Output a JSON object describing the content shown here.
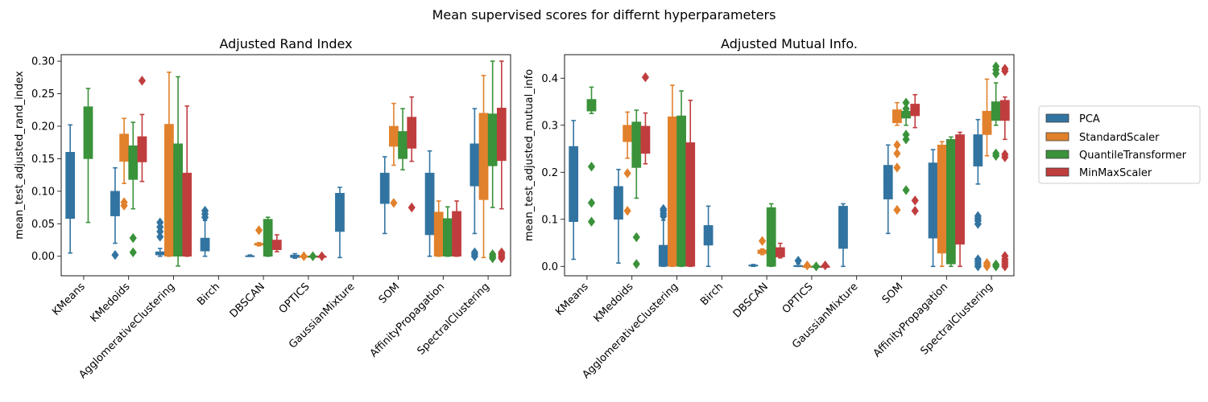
{
  "figure_title": "Mean supervised scores for differnt hyperparameters",
  "chart_data": [
    {
      "type": "box",
      "title": "Adjusted Rand Index",
      "xlabel": "",
      "ylabel": "mean_test_adjusted_rand_index",
      "ylim": [
        -0.03,
        0.31
      ],
      "yticks": [
        "0.00",
        "0.05",
        "0.10",
        "0.15",
        "0.20",
        "0.25",
        "0.30"
      ],
      "ytick_values": [
        0,
        0.05,
        0.1,
        0.15,
        0.2,
        0.25,
        0.3
      ],
      "categories": [
        "KMeans",
        "KMedoids",
        "AgglomerativeClustering",
        "Birch",
        "DBSCAN",
        "OPTICS",
        "GaussianMixture",
        "SOM",
        "AffinityPropagation",
        "SpectralClustering"
      ],
      "series": [
        {
          "name": "PCA",
          "boxes": [
            {
              "low": 0.005,
              "q1": 0.058,
              "med": 0.105,
              "q3": 0.16,
              "high": 0.202,
              "fliers": []
            },
            {
              "low": 0.02,
              "q1": 0.062,
              "med": 0.072,
              "q3": 0.1,
              "high": 0.136,
              "fliers": [
                0.002
              ]
            },
            {
              "low": 0.0,
              "q1": 0.002,
              "med": 0.004,
              "q3": 0.007,
              "high": 0.012,
              "fliers": [
                0.03,
                0.038,
                0.045,
                0.052
              ]
            },
            {
              "low": 0.0,
              "q1": 0.008,
              "med": 0.015,
              "q3": 0.028,
              "high": 0.055,
              "fliers": [
                0.06,
                0.065,
                0.07
              ]
            },
            {
              "low": 0.0,
              "q1": 0.0,
              "med": 0.0,
              "q3": 0.001,
              "high": 0.002,
              "fliers": []
            },
            {
              "low": -0.003,
              "q1": -0.002,
              "med": 0.0,
              "q3": 0.002,
              "high": 0.004,
              "fliers": []
            },
            {
              "low": -0.002,
              "q1": 0.038,
              "med": 0.05,
              "q3": 0.097,
              "high": 0.106,
              "fliers": []
            },
            {
              "low": 0.035,
              "q1": 0.081,
              "med": 0.103,
              "q3": 0.128,
              "high": 0.153,
              "fliers": []
            },
            {
              "low": 0.0,
              "q1": 0.033,
              "med": 0.058,
              "q3": 0.128,
              "high": 0.162,
              "fliers": []
            },
            {
              "low": 0.035,
              "q1": 0.108,
              "med": 0.141,
              "q3": 0.173,
              "high": 0.227,
              "fliers": [
                0.0,
                0.003,
                0.006
              ]
            }
          ]
        },
        {
          "name": "StandardScaler",
          "boxes": [
            null,
            {
              "low": 0.112,
              "q1": 0.146,
              "med": 0.168,
              "q3": 0.188,
              "high": 0.212,
              "fliers": [
                0.078,
                0.083
              ]
            },
            {
              "low": 0.0,
              "q1": 0.0,
              "med": 0.07,
              "q3": 0.203,
              "high": 0.283,
              "fliers": []
            },
            null,
            {
              "low": 0.016,
              "q1": 0.017,
              "med": 0.018,
              "q3": 0.02,
              "high": 0.021,
              "fliers": [
                0.04
              ]
            },
            {
              "low": 0.0,
              "q1": 0.0,
              "med": 0.0,
              "q3": 0.0,
              "high": 0.0,
              "fliers": [
                0.0
              ]
            },
            null,
            {
              "low": 0.14,
              "q1": 0.169,
              "med": 0.188,
              "q3": 0.2,
              "high": 0.235,
              "fliers": [
                0.082
              ]
            },
            {
              "low": 0.0,
              "q1": 0.0,
              "med": 0.02,
              "q3": 0.068,
              "high": 0.085,
              "fliers": []
            },
            {
              "low": -0.002,
              "q1": 0.087,
              "med": 0.17,
              "q3": 0.22,
              "high": 0.278,
              "fliers": []
            }
          ]
        },
        {
          "name": "QuantileTransformer",
          "boxes": [
            {
              "low": 0.052,
              "q1": 0.15,
              "med": 0.2,
              "q3": 0.23,
              "high": 0.258,
              "fliers": []
            },
            {
              "low": 0.073,
              "q1": 0.118,
              "med": 0.145,
              "q3": 0.17,
              "high": 0.206,
              "fliers": [
                0.006,
                0.028
              ]
            },
            {
              "low": -0.015,
              "q1": 0.0,
              "med": 0.075,
              "q3": 0.173,
              "high": 0.276,
              "fliers": []
            },
            null,
            {
              "low": 0.0,
              "q1": 0.0,
              "med": 0.02,
              "q3": 0.057,
              "high": 0.06,
              "fliers": []
            },
            {
              "low": 0.0,
              "q1": 0.0,
              "med": 0.0,
              "q3": 0.0,
              "high": 0.0,
              "fliers": [
                0.0
              ]
            },
            null,
            {
              "low": 0.133,
              "q1": 0.15,
              "med": 0.172,
              "q3": 0.192,
              "high": 0.227,
              "fliers": []
            },
            {
              "low": 0.0,
              "q1": 0.0,
              "med": 0.02,
              "q3": 0.058,
              "high": 0.076,
              "fliers": []
            },
            {
              "low": 0.075,
              "q1": 0.139,
              "med": 0.178,
              "q3": 0.219,
              "high": 0.3,
              "fliers": [
                -0.003,
                0.0,
                0.003
              ]
            }
          ]
        },
        {
          "name": "MinMaxScaler",
          "boxes": [
            null,
            {
              "low": 0.115,
              "q1": 0.145,
              "med": 0.168,
              "q3": 0.184,
              "high": 0.218,
              "fliers": [
                0.27
              ]
            },
            {
              "low": 0.0,
              "q1": 0.0,
              "med": 0.055,
              "q3": 0.128,
              "high": 0.231,
              "fliers": []
            },
            null,
            {
              "low": 0.007,
              "q1": 0.01,
              "med": 0.018,
              "q3": 0.025,
              "high": 0.033,
              "fliers": []
            },
            {
              "low": 0.0,
              "q1": 0.0,
              "med": 0.0,
              "q3": 0.0,
              "high": 0.0,
              "fliers": [
                0.0
              ]
            },
            null,
            {
              "low": 0.146,
              "q1": 0.166,
              "med": 0.19,
              "q3": 0.214,
              "high": 0.245,
              "fliers": [
                0.075
              ]
            },
            {
              "low": 0.0,
              "q1": 0.0,
              "med": 0.03,
              "q3": 0.069,
              "high": 0.085,
              "fliers": []
            },
            {
              "low": 0.073,
              "q1": 0.147,
              "med": 0.185,
              "q3": 0.228,
              "high": 0.3,
              "fliers": [
                -0.003,
                0.0,
                0.003,
                0.006
              ]
            }
          ]
        }
      ]
    },
    {
      "type": "box",
      "title": "Adjusted Mutual Info.",
      "xlabel": "",
      "ylabel": "mean_test_adjusted_mutual_info",
      "ylim": [
        -0.02,
        0.45
      ],
      "yticks": [
        "0.0",
        "0.1",
        "0.2",
        "0.3",
        "0.4"
      ],
      "ytick_values": [
        0,
        0.1,
        0.2,
        0.3,
        0.4
      ],
      "categories": [
        "KMeans",
        "KMedoids",
        "AgglomerativeClustering",
        "Birch",
        "DBSCAN",
        "OPTICS",
        "GaussianMixture",
        "SOM",
        "AffinityPropagation",
        "SpectralClustering"
      ],
      "series": [
        {
          "name": "PCA",
          "boxes": [
            {
              "low": 0.015,
              "q1": 0.095,
              "med": 0.2,
              "q3": 0.255,
              "high": 0.31,
              "fliers": []
            },
            {
              "low": 0.007,
              "q1": 0.1,
              "med": 0.14,
              "q3": 0.17,
              "high": 0.206,
              "fliers": []
            },
            {
              "low": 0.0,
              "q1": 0.0,
              "med": 0.01,
              "q3": 0.045,
              "high": 0.098,
              "fliers": [
                0.107,
                0.112,
                0.118,
                0.122
              ]
            },
            {
              "low": 0.0,
              "q1": 0.045,
              "med": 0.07,
              "q3": 0.087,
              "high": 0.128,
              "fliers": []
            },
            {
              "low": 0.0,
              "q1": 0.001,
              "med": 0.002,
              "q3": 0.003,
              "high": 0.004,
              "fliers": []
            },
            {
              "low": 0.0,
              "q1": 0.0,
              "med": 0.0,
              "q3": 0.002,
              "high": 0.005,
              "fliers": [
                0.012
              ]
            },
            {
              "low": 0.0,
              "q1": 0.038,
              "med": 0.11,
              "q3": 0.128,
              "high": 0.133,
              "fliers": []
            },
            {
              "low": 0.07,
              "q1": 0.143,
              "med": 0.19,
              "q3": 0.215,
              "high": 0.258,
              "fliers": []
            },
            {
              "low": 0.0,
              "q1": 0.06,
              "med": 0.115,
              "q3": 0.22,
              "high": 0.248,
              "fliers": []
            },
            {
              "low": 0.175,
              "q1": 0.213,
              "med": 0.26,
              "q3": 0.28,
              "high": 0.312,
              "fliers": [
                0.0,
                0.005,
                0.01,
                0.015,
                0.09,
                0.097,
                0.102,
                0.107
              ]
            }
          ]
        },
        {
          "name": "StandardScaler",
          "boxes": [
            null,
            {
              "low": 0.23,
              "q1": 0.265,
              "med": 0.28,
              "q3": 0.3,
              "high": 0.328,
              "fliers": [
                0.118,
                0.198
              ]
            },
            {
              "low": 0.0,
              "q1": 0.0,
              "med": 0.14,
              "q3": 0.318,
              "high": 0.385,
              "fliers": []
            },
            null,
            {
              "low": 0.025,
              "q1": 0.027,
              "med": 0.03,
              "q3": 0.035,
              "high": 0.037,
              "fliers": [
                0.054
              ]
            },
            {
              "low": 0.0,
              "q1": 0.0,
              "med": 0.0,
              "q3": 0.0,
              "high": 0.0,
              "fliers": [
                0.002
              ]
            },
            null,
            {
              "low": 0.3,
              "q1": 0.305,
              "med": 0.31,
              "q3": 0.333,
              "high": 0.348,
              "fliers": [
                0.12,
                0.21,
                0.24,
                0.258
              ]
            },
            {
              "low": 0.0,
              "q1": 0.028,
              "med": 0.12,
              "q3": 0.258,
              "high": 0.265,
              "fliers": []
            },
            {
              "low": 0.235,
              "q1": 0.28,
              "med": 0.3,
              "q3": 0.33,
              "high": 0.398,
              "fliers": [
                0.0,
                0.003,
                0.007
              ]
            }
          ]
        },
        {
          "name": "QuantileTransformer",
          "boxes": [
            {
              "low": 0.325,
              "q1": 0.33,
              "med": 0.34,
              "q3": 0.355,
              "high": 0.381,
              "fliers": [
                0.095,
                0.135,
                0.212
              ]
            },
            {
              "low": 0.145,
              "q1": 0.21,
              "med": 0.25,
              "q3": 0.307,
              "high": 0.332,
              "fliers": [
                0.005,
                0.062
              ]
            },
            {
              "low": 0.0,
              "q1": 0.0,
              "med": 0.17,
              "q3": 0.32,
              "high": 0.373,
              "fliers": []
            },
            null,
            {
              "low": 0.0,
              "q1": 0.0,
              "med": 0.07,
              "q3": 0.125,
              "high": 0.133,
              "fliers": []
            },
            {
              "low": 0.0,
              "q1": 0.0,
              "med": 0.0,
              "q3": 0.0,
              "high": 0.0,
              "fliers": [
                0.0
              ]
            },
            null,
            {
              "low": 0.3,
              "q1": 0.315,
              "med": 0.32,
              "q3": 0.33,
              "high": 0.345,
              "fliers": [
                0.162,
                0.27,
                0.28,
                0.335,
                0.348
              ]
            },
            {
              "low": 0.0,
              "q1": 0.005,
              "med": 0.06,
              "q3": 0.27,
              "high": 0.275,
              "fliers": []
            },
            {
              "low": 0.3,
              "q1": 0.31,
              "med": 0.32,
              "q3": 0.35,
              "high": 0.39,
              "fliers": [
                0.0,
                0.004,
                0.235,
                0.24,
                0.41,
                0.418,
                0.425
              ]
            }
          ]
        },
        {
          "name": "MinMaxScaler",
          "boxes": [
            null,
            {
              "low": 0.218,
              "q1": 0.24,
              "med": 0.26,
              "q3": 0.298,
              "high": 0.326,
              "fliers": [
                0.402
              ]
            },
            {
              "low": 0.0,
              "q1": 0.0,
              "med": 0.13,
              "q3": 0.263,
              "high": 0.353,
              "fliers": []
            },
            null,
            {
              "low": 0.018,
              "q1": 0.02,
              "med": 0.03,
              "q3": 0.04,
              "high": 0.049,
              "fliers": []
            },
            {
              "low": 0.0,
              "q1": 0.0,
              "med": 0.0,
              "q3": 0.0,
              "high": 0.0,
              "fliers": [
                0.002
              ]
            },
            null,
            {
              "low": 0.295,
              "q1": 0.32,
              "med": 0.333,
              "q3": 0.345,
              "high": 0.365,
              "fliers": [
                0.118,
                0.14
              ]
            },
            {
              "low": 0.0,
              "q1": 0.047,
              "med": 0.15,
              "q3": 0.28,
              "high": 0.285,
              "fliers": []
            },
            {
              "low": 0.27,
              "q1": 0.31,
              "med": 0.33,
              "q3": 0.353,
              "high": 0.36,
              "fliers": [
                0.0,
                0.005,
                0.01,
                0.015,
                0.022,
                0.232,
                0.238,
                0.415,
                0.42
              ]
            }
          ]
        }
      ]
    }
  ],
  "legend": {
    "placement": "right",
    "items": [
      {
        "label": "PCA",
        "color": "#3274a1"
      },
      {
        "label": "StandardScaler",
        "color": "#e1812c"
      },
      {
        "label": "QuantileTransformer",
        "color": "#3a923a"
      },
      {
        "label": "MinMaxScaler",
        "color": "#c03d3e"
      }
    ]
  },
  "colors": {
    "PCA": "#3274a1",
    "StandardScaler": "#e1812c",
    "QuantileTransformer": "#3a923a",
    "MinMaxScaler": "#c03d3e",
    "outline": "#3d3d3d",
    "axis": "#000000"
  }
}
